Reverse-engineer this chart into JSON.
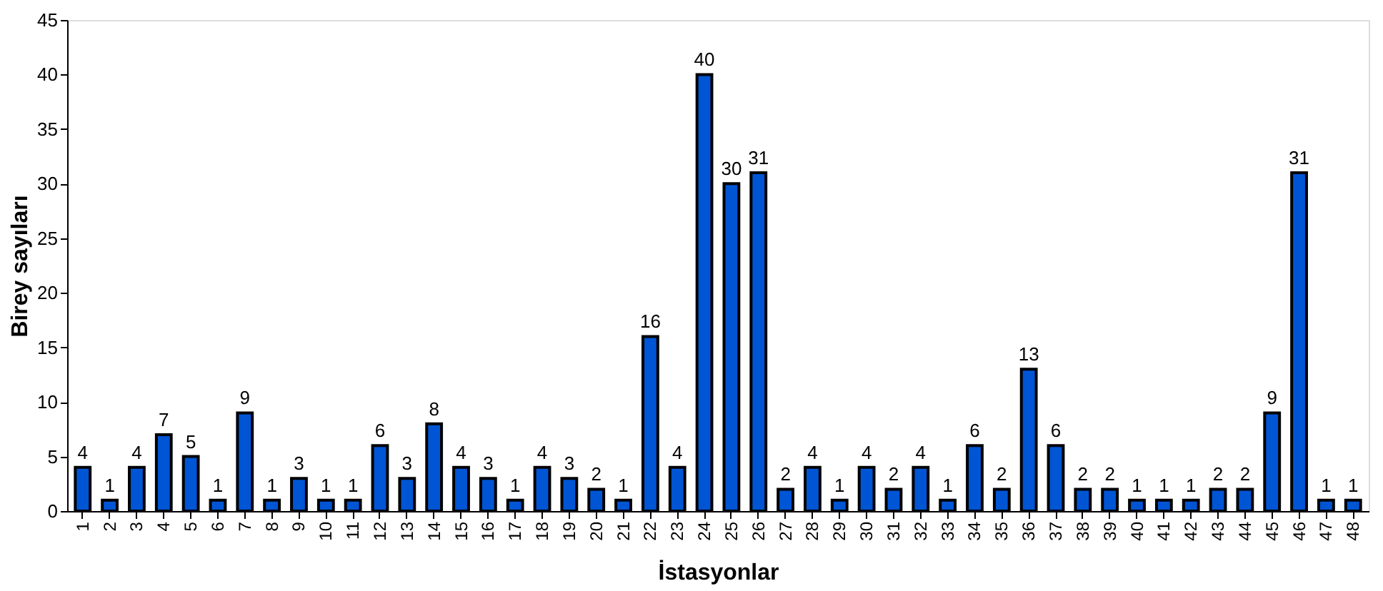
{
  "chart_data": {
    "type": "bar",
    "xlabel": "İstasyonlar",
    "ylabel": "Birey sayıları",
    "categories": [
      "1",
      "2",
      "3",
      "4",
      "5",
      "6",
      "7",
      "8",
      "9",
      "10",
      "11",
      "12",
      "13",
      "14",
      "15",
      "16",
      "17",
      "18",
      "19",
      "20",
      "21",
      "22",
      "23",
      "24",
      "25",
      "26",
      "27",
      "28",
      "29",
      "30",
      "31",
      "32",
      "33",
      "34",
      "35",
      "36",
      "37",
      "38",
      "39",
      "40",
      "41",
      "42",
      "43",
      "44",
      "45",
      "46",
      "47",
      "48"
    ],
    "values": [
      4,
      1,
      4,
      7,
      5,
      1,
      9,
      1,
      3,
      1,
      1,
      6,
      3,
      8,
      4,
      3,
      1,
      4,
      3,
      2,
      1,
      16,
      4,
      40,
      30,
      31,
      2,
      4,
      1,
      4,
      2,
      4,
      1,
      6,
      2,
      13,
      6,
      2,
      2,
      1,
      1,
      1,
      2,
      2,
      9,
      31,
      1,
      1
    ],
    "color": "#0055d4",
    "ylim": [
      0,
      45
    ],
    "yticks": [
      0,
      5,
      10,
      15,
      20,
      25,
      30,
      35,
      40,
      45
    ],
    "data_labels": true,
    "grid": false
  }
}
